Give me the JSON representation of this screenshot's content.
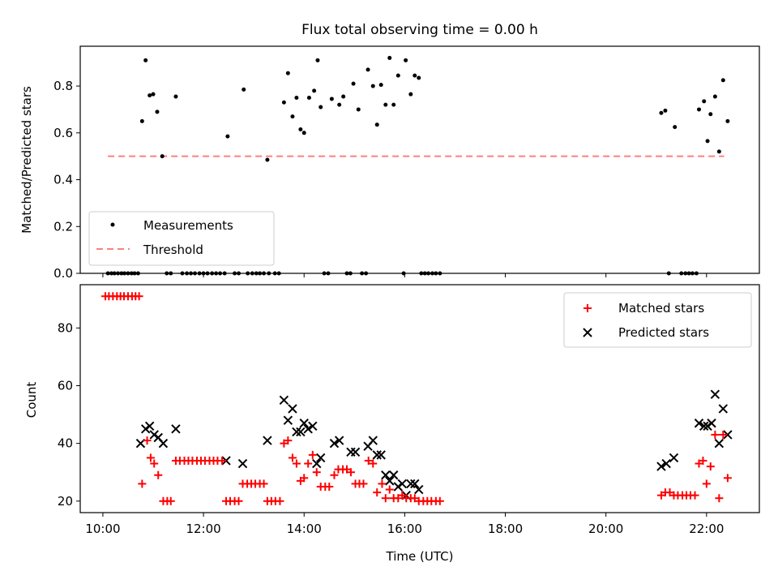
{
  "title": "Flux total observing time = 0.00 h",
  "colors": {
    "measurement": "#000000",
    "threshold": "#ff7f7f",
    "matched": "#ff0000",
    "predicted": "#000000"
  },
  "chart_data": [
    {
      "type": "scatter",
      "ylabel": "Matched/Predicted stars",
      "ylim": [
        0,
        0.97
      ],
      "yticks": [
        "0.0",
        "0.2",
        "0.4",
        "0.6",
        "0.8"
      ],
      "ytick_values": [
        0,
        0.2,
        0.4,
        0.6,
        0.8
      ],
      "xlim_hours": [
        9.55,
        23.05
      ],
      "legend": {
        "placement": "lower-left",
        "measurements_label": "Measurements",
        "threshold_label": "Threshold"
      },
      "threshold": {
        "y": 0.5,
        "x_start_hours": 10.1,
        "x_end_hours": 22.35
      },
      "measurements": [
        [
          10.78,
          0.65
        ],
        [
          10.85,
          0.91
        ],
        [
          10.93,
          0.76
        ],
        [
          11.0,
          0.765
        ],
        [
          11.08,
          0.69
        ],
        [
          11.18,
          0.5
        ],
        [
          11.45,
          0.755
        ],
        [
          12.48,
          0.585
        ],
        [
          12.8,
          0.785
        ],
        [
          13.27,
          0.485
        ],
        [
          13.6,
          0.73
        ],
        [
          13.68,
          0.855
        ],
        [
          13.77,
          0.67
        ],
        [
          13.85,
          0.75
        ],
        [
          13.93,
          0.615
        ],
        [
          14.0,
          0.6
        ],
        [
          14.1,
          0.75
        ],
        [
          14.2,
          0.78
        ],
        [
          14.27,
          0.91
        ],
        [
          14.33,
          0.71
        ],
        [
          14.55,
          0.745
        ],
        [
          14.7,
          0.72
        ],
        [
          14.78,
          0.755
        ],
        [
          14.98,
          0.81
        ],
        [
          15.08,
          0.7
        ],
        [
          15.27,
          0.87
        ],
        [
          15.37,
          0.8
        ],
        [
          15.45,
          0.635
        ],
        [
          15.53,
          0.805
        ],
        [
          15.62,
          0.72
        ],
        [
          15.7,
          0.92
        ],
        [
          15.78,
          0.72
        ],
        [
          15.87,
          0.845
        ],
        [
          16.02,
          0.91
        ],
        [
          16.12,
          0.765
        ],
        [
          16.2,
          0.845
        ],
        [
          16.28,
          0.835
        ],
        [
          21.1,
          0.685
        ],
        [
          21.18,
          0.695
        ],
        [
          21.37,
          0.625
        ],
        [
          21.85,
          0.7
        ],
        [
          21.95,
          0.735
        ],
        [
          22.02,
          0.565
        ],
        [
          22.08,
          0.68
        ],
        [
          22.17,
          0.755
        ],
        [
          22.25,
          0.52
        ],
        [
          22.33,
          0.825
        ],
        [
          22.42,
          0.65
        ],
        [
          10.1,
          0
        ],
        [
          10.17,
          0
        ],
        [
          10.23,
          0
        ],
        [
          10.3,
          0
        ],
        [
          10.37,
          0
        ],
        [
          10.43,
          0
        ],
        [
          10.5,
          0
        ],
        [
          10.57,
          0
        ],
        [
          10.63,
          0
        ],
        [
          10.7,
          0
        ],
        [
          11.27,
          0
        ],
        [
          11.35,
          0
        ],
        [
          11.58,
          0
        ],
        [
          11.67,
          0
        ],
        [
          11.75,
          0
        ],
        [
          11.83,
          0
        ],
        [
          11.92,
          0
        ],
        [
          12.0,
          0
        ],
        [
          12.08,
          0
        ],
        [
          12.17,
          0
        ],
        [
          12.25,
          0
        ],
        [
          12.33,
          0
        ],
        [
          12.42,
          0
        ],
        [
          12.62,
          0
        ],
        [
          12.7,
          0
        ],
        [
          12.88,
          0
        ],
        [
          12.97,
          0
        ],
        [
          13.05,
          0
        ],
        [
          13.12,
          0
        ],
        [
          13.2,
          0
        ],
        [
          13.3,
          0
        ],
        [
          13.42,
          0
        ],
        [
          13.5,
          0
        ],
        [
          14.4,
          0
        ],
        [
          14.48,
          0
        ],
        [
          14.85,
          0
        ],
        [
          14.92,
          0
        ],
        [
          15.15,
          0
        ],
        [
          15.23,
          0
        ],
        [
          15.98,
          0
        ],
        [
          16.33,
          0
        ],
        [
          16.4,
          0
        ],
        [
          16.47,
          0
        ],
        [
          16.55,
          0
        ],
        [
          16.62,
          0
        ],
        [
          16.7,
          0
        ],
        [
          21.25,
          0
        ],
        [
          21.5,
          0
        ],
        [
          21.58,
          0
        ],
        [
          21.65,
          0
        ],
        [
          21.72,
          0
        ],
        [
          21.8,
          0
        ]
      ]
    },
    {
      "type": "scatter",
      "ylabel": "Count",
      "xlabel": "Time (UTC)",
      "ylim": [
        16,
        95
      ],
      "yticks": [
        "20",
        "40",
        "60",
        "80"
      ],
      "ytick_values": [
        20,
        40,
        60,
        80
      ],
      "xlim_hours": [
        9.55,
        23.05
      ],
      "xticks": [
        "10:00",
        "12:00",
        "14:00",
        "16:00",
        "18:00",
        "20:00",
        "22:00"
      ],
      "xtick_hours": [
        10,
        12,
        14,
        16,
        18,
        20,
        22
      ],
      "legend": {
        "placement": "top-right",
        "matched_label": "Matched stars",
        "predicted_label": "Predicted stars"
      },
      "matched": [
        [
          10.05,
          91
        ],
        [
          10.12,
          91
        ],
        [
          10.2,
          91
        ],
        [
          10.28,
          91
        ],
        [
          10.35,
          91
        ],
        [
          10.42,
          91
        ],
        [
          10.5,
          91
        ],
        [
          10.58,
          91
        ],
        [
          10.65,
          91
        ],
        [
          10.72,
          91
        ],
        [
          10.78,
          26
        ],
        [
          10.88,
          41
        ],
        [
          10.95,
          35
        ],
        [
          11.02,
          33
        ],
        [
          11.1,
          29
        ],
        [
          11.2,
          20
        ],
        [
          11.28,
          20
        ],
        [
          11.35,
          20
        ],
        [
          11.45,
          34
        ],
        [
          11.53,
          34
        ],
        [
          11.62,
          34
        ],
        [
          11.7,
          34
        ],
        [
          11.78,
          34
        ],
        [
          11.87,
          34
        ],
        [
          11.95,
          34
        ],
        [
          12.03,
          34
        ],
        [
          12.12,
          34
        ],
        [
          12.2,
          34
        ],
        [
          12.28,
          34
        ],
        [
          12.37,
          34
        ],
        [
          12.45,
          20
        ],
        [
          12.53,
          20
        ],
        [
          12.62,
          20
        ],
        [
          12.7,
          20
        ],
        [
          12.78,
          26
        ],
        [
          12.87,
          26
        ],
        [
          12.95,
          26
        ],
        [
          13.03,
          26
        ],
        [
          13.12,
          26
        ],
        [
          13.2,
          26
        ],
        [
          13.27,
          20
        ],
        [
          13.35,
          20
        ],
        [
          13.43,
          20
        ],
        [
          13.52,
          20
        ],
        [
          13.6,
          40
        ],
        [
          13.68,
          41
        ],
        [
          13.77,
          35
        ],
        [
          13.85,
          33
        ],
        [
          13.93,
          27
        ],
        [
          14.0,
          28
        ],
        [
          14.08,
          33
        ],
        [
          14.17,
          36
        ],
        [
          14.25,
          30
        ],
        [
          14.33,
          25
        ],
        [
          14.42,
          25
        ],
        [
          14.5,
          25
        ],
        [
          14.6,
          29
        ],
        [
          14.68,
          31
        ],
        [
          14.77,
          31
        ],
        [
          14.85,
          31
        ],
        [
          14.93,
          30
        ],
        [
          15.02,
          26
        ],
        [
          15.1,
          26
        ],
        [
          15.18,
          26
        ],
        [
          15.28,
          34
        ],
        [
          15.37,
          33
        ],
        [
          15.45,
          23
        ],
        [
          15.55,
          26
        ],
        [
          15.62,
          21
        ],
        [
          15.7,
          24
        ],
        [
          15.78,
          21
        ],
        [
          15.87,
          21
        ],
        [
          15.95,
          22
        ],
        [
          16.03,
          21
        ],
        [
          16.12,
          21
        ],
        [
          16.2,
          21
        ],
        [
          16.28,
          20
        ],
        [
          16.37,
          20
        ],
        [
          16.45,
          20
        ],
        [
          16.53,
          20
        ],
        [
          16.62,
          20
        ],
        [
          16.7,
          20
        ],
        [
          21.1,
          22
        ],
        [
          21.18,
          23
        ],
        [
          21.27,
          23
        ],
        [
          21.35,
          22
        ],
        [
          21.43,
          22
        ],
        [
          21.52,
          22
        ],
        [
          21.6,
          22
        ],
        [
          21.68,
          22
        ],
        [
          21.77,
          22
        ],
        [
          21.85,
          33
        ],
        [
          21.93,
          34
        ],
        [
          22.0,
          26
        ],
        [
          22.08,
          32
        ],
        [
          22.17,
          43
        ],
        [
          22.25,
          21
        ],
        [
          22.33,
          43
        ],
        [
          22.42,
          28
        ]
      ],
      "predicted": [
        [
          10.75,
          40
        ],
        [
          10.85,
          45
        ],
        [
          10.93,
          46
        ],
        [
          11.02,
          43
        ],
        [
          11.1,
          42
        ],
        [
          11.2,
          40
        ],
        [
          11.45,
          45
        ],
        [
          12.45,
          34
        ],
        [
          12.78,
          33
        ],
        [
          13.27,
          41
        ],
        [
          13.6,
          55
        ],
        [
          13.68,
          48
        ],
        [
          13.77,
          52
        ],
        [
          13.85,
          44
        ],
        [
          13.93,
          44
        ],
        [
          14.0,
          47
        ],
        [
          14.08,
          45
        ],
        [
          14.17,
          46
        ],
        [
          14.25,
          33
        ],
        [
          14.33,
          35
        ],
        [
          14.6,
          40
        ],
        [
          14.7,
          41
        ],
        [
          14.93,
          37
        ],
        [
          15.02,
          37
        ],
        [
          15.27,
          39
        ],
        [
          15.37,
          41
        ],
        [
          15.45,
          36
        ],
        [
          15.53,
          36
        ],
        [
          15.62,
          29
        ],
        [
          15.7,
          27
        ],
        [
          15.78,
          29
        ],
        [
          15.87,
          25
        ],
        [
          15.95,
          26
        ],
        [
          16.03,
          22
        ],
        [
          16.12,
          26
        ],
        [
          16.2,
          26
        ],
        [
          16.28,
          24
        ],
        [
          21.1,
          32
        ],
        [
          21.2,
          33
        ],
        [
          21.35,
          35
        ],
        [
          21.85,
          47
        ],
        [
          21.95,
          46
        ],
        [
          22.02,
          46
        ],
        [
          22.1,
          47
        ],
        [
          22.17,
          57
        ],
        [
          22.25,
          40
        ],
        [
          22.33,
          52
        ],
        [
          22.42,
          43
        ]
      ]
    }
  ]
}
